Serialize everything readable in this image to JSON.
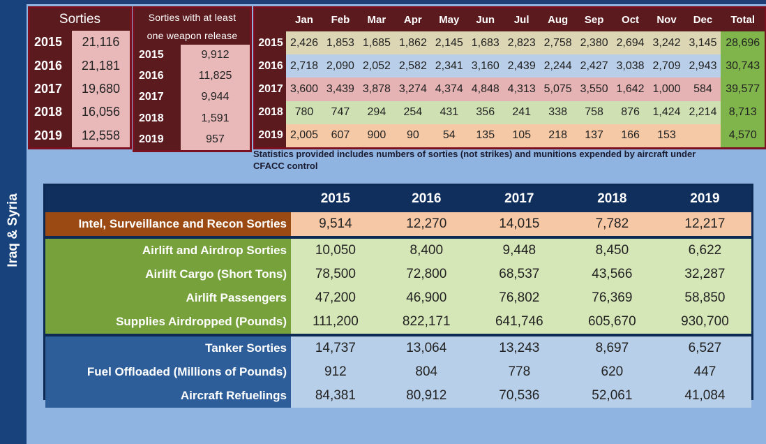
{
  "sidebar": {
    "label": "Iraq & Syria"
  },
  "sorties": {
    "title": "Sorties",
    "rows": [
      {
        "year": "2015",
        "value": "21,116"
      },
      {
        "year": "2016",
        "value": "21,181"
      },
      {
        "year": "2017",
        "value": "19,680"
      },
      {
        "year": "2018",
        "value": "16,056"
      },
      {
        "year": "2019",
        "value": "12,558"
      }
    ]
  },
  "weapons": {
    "title_line1": "Sorties with at least",
    "title_line2": "one weapon release",
    "rows": [
      {
        "year": "2015",
        "value": "9,912"
      },
      {
        "year": "2016",
        "value": "11,825"
      },
      {
        "year": "2017",
        "value": "9,944"
      },
      {
        "year": "2018",
        "value": "1,591"
      },
      {
        "year": "2019",
        "value": "957"
      }
    ]
  },
  "monthly": {
    "headers": [
      "Jan",
      "Feb",
      "Mar",
      "Apr",
      "May",
      "Jun",
      "Jul",
      "Aug",
      "Sep",
      "Oct",
      "Nov",
      "Dec",
      "Total"
    ],
    "rows": [
      {
        "year": "2015",
        "values": [
          "2,426",
          "1,853",
          "1,685",
          "1,862",
          "2,145",
          "1,683",
          "2,823",
          "2,758",
          "2,380",
          "2,694",
          "3,242",
          "3,145"
        ],
        "total": "28,696"
      },
      {
        "year": "2016",
        "values": [
          "2,718",
          "2,090",
          "2,052",
          "2,582",
          "2,341",
          "3,160",
          "2,439",
          "2,244",
          "2,427",
          "3,038",
          "2,709",
          "2,943"
        ],
        "total": "30,743"
      },
      {
        "year": "2017",
        "values": [
          "3,600",
          "3,439",
          "3,878",
          "3,274",
          "4,374",
          "4,848",
          "4,313",
          "5,075",
          "3,550",
          "1,642",
          "1,000",
          "584"
        ],
        "total": "39,577"
      },
      {
        "year": "2018",
        "values": [
          "780",
          "747",
          "294",
          "254",
          "431",
          "356",
          "241",
          "338",
          "758",
          "876",
          "1,424",
          "2,214"
        ],
        "total": "8,713"
      },
      {
        "year": "2019",
        "values": [
          "2,005",
          "607",
          "900",
          "90",
          "54",
          "135",
          "105",
          "218",
          "137",
          "166",
          "153",
          ""
        ],
        "total": "4,570"
      }
    ]
  },
  "note": {
    "line1": "Statistics provided includes numbers of sorties (not strikes) and munitions expended by aircraft under",
    "line2": "CFACC control"
  },
  "summary": {
    "years": [
      "2015",
      "2016",
      "2017",
      "2018",
      "2019"
    ],
    "rows": [
      {
        "label": "Intel, Surveillance and Recon Sorties",
        "values": [
          "9,514",
          "12,270",
          "14,015",
          "7,782",
          "12,217"
        ]
      },
      {
        "label": "Airlift and Airdrop Sorties",
        "values": [
          "10,050",
          "8,400",
          "9,448",
          "8,450",
          "6,622"
        ]
      },
      {
        "label": "Airlift Cargo (Short Tons)",
        "values": [
          "78,500",
          "72,800",
          "68,537",
          "43,566",
          "32,287"
        ]
      },
      {
        "label": "Airlift Passengers",
        "values": [
          "47,200",
          "46,900",
          "76,802",
          "76,369",
          "58,850"
        ]
      },
      {
        "label": "Supplies Airdropped (Pounds)",
        "values": [
          "111,200",
          "822,171",
          "641,746",
          "605,670",
          "930,700"
        ]
      },
      {
        "label": "Tanker Sorties",
        "values": [
          "14,737",
          "13,064",
          "13,243",
          "8,697",
          "6,527"
        ]
      },
      {
        "label": "Fuel Offloaded (Millions of Pounds)",
        "values": [
          "912",
          "804",
          "778",
          "620",
          "447"
        ]
      },
      {
        "label": "Aircraft Refuelings",
        "values": [
          "84,381",
          "80,912",
          "70,536",
          "52,061",
          "41,084"
        ]
      }
    ]
  }
}
